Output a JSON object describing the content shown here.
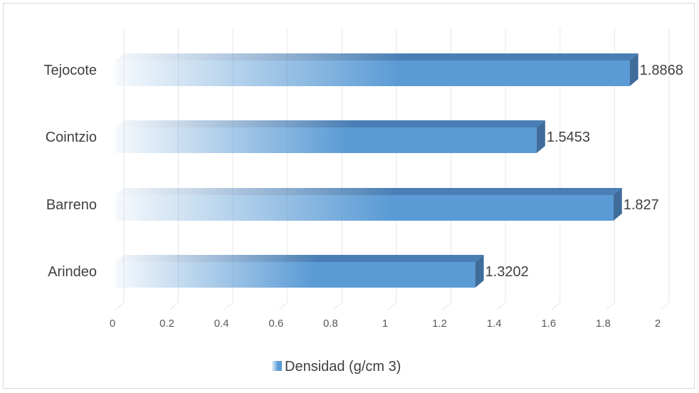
{
  "chart_data": {
    "type": "bar",
    "orientation": "horizontal",
    "categories": [
      "Tejocote",
      "Cointzio",
      "Barreno",
      "Arindeo"
    ],
    "series": [
      {
        "name": "Densidad (g/cm 3)",
        "values": [
          1.8868,
          1.5453,
          1.827,
          1.3202
        ]
      }
    ],
    "data_labels": [
      "1.8868",
      "1.5453",
      "1.827",
      "1.3202"
    ],
    "xlim": [
      0,
      2
    ],
    "xticks": [
      "0",
      "0.2",
      "0.4",
      "0.6",
      "0.8",
      "1",
      "1.2",
      "1.4",
      "1.6",
      "1.8",
      "2"
    ],
    "grid": true,
    "legend_position": "bottom",
    "colors": {
      "bar": "#5b9bd5",
      "bar_top": "#4a7fb5",
      "bar_side": "#3f6c9b",
      "grid": "#e6e6e6"
    }
  }
}
